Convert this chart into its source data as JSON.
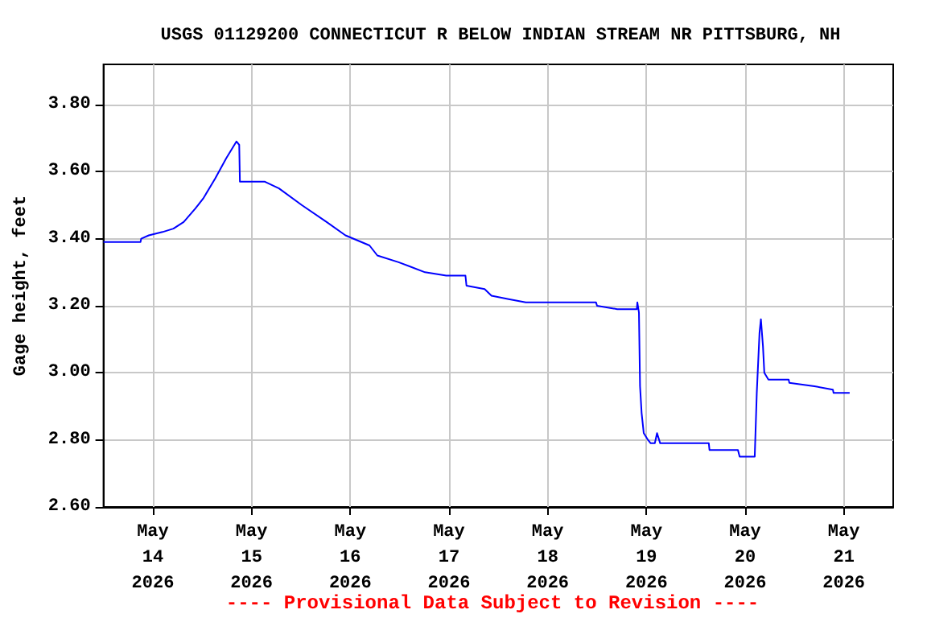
{
  "chart_data": {
    "type": "line",
    "title": "USGS 01129200 CONNECTICUT R BELOW INDIAN STREAM NR PITTSBURG, NH",
    "ylabel": "Gage height, feet",
    "annotations": [
      "---- Provisional Data Subject to Revision ----"
    ],
    "xlim": [
      "2026-05-13T12:00",
      "2026-05-21T12:00"
    ],
    "xticks": [
      {
        "value": "2026-05-14",
        "label": "May\n14\n2026"
      },
      {
        "value": "2026-05-15",
        "label": "May\n15\n2026"
      },
      {
        "value": "2026-05-16",
        "label": "May\n16\n2026"
      },
      {
        "value": "2026-05-17",
        "label": "May\n17\n2026"
      },
      {
        "value": "2026-05-18",
        "label": "May\n18\n2026"
      },
      {
        "value": "2026-05-19",
        "label": "May\n19\n2026"
      },
      {
        "value": "2026-05-20",
        "label": "May\n20\n2026"
      },
      {
        "value": "2026-05-21",
        "label": "May\n21\n2026"
      }
    ],
    "ylim": [
      2.6,
      3.92
    ],
    "yticks": [
      {
        "value": 2.6,
        "label": "2.60"
      },
      {
        "value": 2.8,
        "label": "2.80"
      },
      {
        "value": 3.0,
        "label": "3.00"
      },
      {
        "value": 3.2,
        "label": "3.20"
      },
      {
        "value": 3.4,
        "label": "3.40"
      },
      {
        "value": 3.6,
        "label": "3.60"
      },
      {
        "value": 3.8,
        "label": "3.80"
      }
    ],
    "grid": true,
    "series": [
      {
        "color": "#0000ff",
        "x": [
          "2026-05-13T12:00",
          "2026-05-13T21:00",
          "2026-05-13T21:10",
          "2026-05-13T23:00",
          "2026-05-14T02:20",
          "2026-05-14T05:00",
          "2026-05-14T07:30",
          "2026-05-14T10:20",
          "2026-05-14T12:15",
          "2026-05-14T15:10",
          "2026-05-14T17:50",
          "2026-05-14T20:20",
          "2026-05-14T21:00",
          "2026-05-14T21:10",
          "2026-05-15T03:15",
          "2026-05-15T06:40",
          "2026-05-15T12:15",
          "2026-05-15T18:15",
          "2026-05-15T22:50",
          "2026-05-16T04:40",
          "2026-05-16T06:35",
          "2026-05-16T11:45",
          "2026-05-16T18:10",
          "2026-05-16T23:20",
          "2026-05-17T04:00",
          "2026-05-17T04:15",
          "2026-05-17T08:40",
          "2026-05-17T10:20",
          "2026-05-17T14:30",
          "2026-05-17T18:40",
          "2026-05-18T11:45",
          "2026-05-18T12:00",
          "2026-05-18T16:55",
          "2026-05-18T21:40",
          "2026-05-18T21:48",
          "2026-05-18T22:11",
          "2026-05-18T22:27",
          "2026-05-18T22:50",
          "2026-05-18T23:21",
          "2026-05-19T00:23",
          "2026-05-19T01:02",
          "2026-05-19T02:03",
          "2026-05-19T02:35",
          "2026-05-19T03:21",
          "2026-05-19T15:10",
          "2026-05-19T15:20",
          "2026-05-19T22:15",
          "2026-05-19T22:40",
          "2026-05-20T02:20",
          "2026-05-20T02:50",
          "2026-05-20T03:30",
          "2026-05-20T03:50",
          "2026-05-20T04:20",
          "2026-05-20T04:40",
          "2026-05-20T05:40",
          "2026-05-20T10:35",
          "2026-05-20T10:45",
          "2026-05-20T16:50",
          "2026-05-20T21:20",
          "2026-05-20T21:30",
          "2026-05-21T01:25"
        ],
        "values": [
          3.39,
          3.39,
          3.4,
          3.41,
          3.42,
          3.43,
          3.45,
          3.49,
          3.52,
          3.58,
          3.64,
          3.69,
          3.68,
          3.57,
          3.57,
          3.55,
          3.5,
          3.45,
          3.41,
          3.38,
          3.35,
          3.33,
          3.3,
          3.29,
          3.29,
          3.26,
          3.25,
          3.23,
          3.22,
          3.21,
          3.21,
          3.2,
          3.19,
          3.19,
          3.21,
          3.18,
          2.96,
          2.88,
          2.82,
          2.8,
          2.79,
          2.79,
          2.82,
          2.79,
          2.79,
          2.77,
          2.77,
          2.75,
          2.75,
          2.94,
          3.12,
          3.16,
          3.08,
          3.0,
          2.98,
          2.98,
          2.97,
          2.96,
          2.95,
          2.94,
          2.94
        ]
      }
    ]
  }
}
